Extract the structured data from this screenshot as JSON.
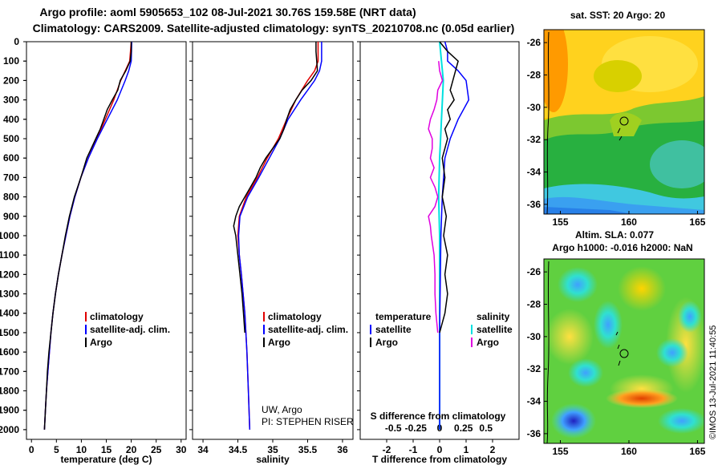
{
  "header": {
    "title_line1": "Argo profile: aoml 5905653_102 08-Jul-2021 30.76S 159.58E (NRT data)",
    "title_line2": "Climatology: CARS2009. Satellite-adjusted climatology: synTS_20210708.nc (0.05d earlier)"
  },
  "colors": {
    "argo": "#000000",
    "climatology": "#e00000",
    "satellite_adj": "#0000ff",
    "satellite": "#00e0e0",
    "salinity_argo": "#e000e0"
  },
  "chart_data": [
    {
      "type": "line",
      "id": "temperature",
      "xlabel": "temperature (deg C)",
      "ylabel": "",
      "xlim": [
        -1,
        31
      ],
      "ylim": [
        2050,
        0
      ],
      "xticks": [
        "0",
        "5",
        "10",
        "15",
        "20",
        "25",
        "30"
      ],
      "yticks": [
        "0",
        "100",
        "200",
        "300",
        "400",
        "500",
        "600",
        "700",
        "800",
        "900",
        "1000",
        "1100",
        "1200",
        "1300",
        "1400",
        "1500",
        "1600",
        "1700",
        "1800",
        "1900",
        "2000"
      ],
      "legend": [
        "climatology",
        "satellite-adj. clim.",
        "Argo"
      ],
      "series": [
        {
          "name": "climatology",
          "depth": [
            0,
            100,
            150,
            200,
            300,
            400,
            500,
            600,
            700,
            800,
            900,
            1000,
            1100,
            1200,
            1300,
            1400,
            1500,
            1600,
            1700,
            1800,
            1900,
            2000
          ],
          "values": [
            20.0,
            19.7,
            18.8,
            17.9,
            16.5,
            14.8,
            13.1,
            11.4,
            9.9,
            8.7,
            7.7,
            6.9,
            6.1,
            5.4,
            4.8,
            4.3,
            3.9,
            3.6,
            3.3,
            3.0,
            2.8,
            2.6
          ]
        },
        {
          "name": "satellite-adj. clim.",
          "depth": [
            0,
            100,
            150,
            200,
            300,
            400,
            500,
            600,
            700,
            800,
            900,
            1000,
            1100,
            1200,
            1300,
            1400,
            1500,
            1600,
            1700,
            1800,
            1900,
            2000
          ],
          "values": [
            20.1,
            20.0,
            19.5,
            18.8,
            17.2,
            15.2,
            13.2,
            11.4,
            9.9,
            8.7,
            7.7,
            6.9,
            6.1,
            5.4,
            4.8,
            4.3,
            3.9,
            3.6,
            3.3,
            3.0,
            2.8,
            2.6
          ]
        },
        {
          "name": "Argo",
          "depth": [
            0,
            50,
            100,
            150,
            200,
            250,
            300,
            350,
            400,
            450,
            500,
            550,
            600,
            650,
            700,
            800,
            900,
            1000,
            1100,
            1200,
            1300,
            1400,
            1500,
            1600,
            1700,
            1800,
            1900,
            2000
          ],
          "values": [
            20.0,
            20.0,
            19.8,
            18.9,
            17.8,
            17.3,
            16.2,
            15.2,
            14.5,
            13.8,
            12.9,
            12.0,
            11.1,
            10.5,
            9.9,
            8.6,
            7.6,
            6.8,
            6.1,
            5.4,
            4.8,
            4.3,
            3.9,
            3.5,
            3.2,
            3.0,
            2.8,
            2.6
          ]
        }
      ]
    },
    {
      "type": "line",
      "id": "salinity",
      "xlabel": "salinity",
      "xlim": [
        33.85,
        36.15
      ],
      "ylim": [
        2050,
        0
      ],
      "xticks": [
        "34",
        "34.5",
        "35",
        "35.5",
        "36"
      ],
      "legend": [
        "climatology",
        "satellite-adj. clim.",
        "Argo"
      ],
      "annotation": [
        "UW, Argo",
        "PI: STEPHEN RISER"
      ],
      "series": [
        {
          "name": "climatology",
          "depth": [
            0,
            100,
            150,
            200,
            300,
            400,
            500,
            600,
            700,
            800,
            900,
            1000,
            1100,
            1200,
            1400,
            1600,
            1800,
            2000
          ],
          "values": [
            35.65,
            35.65,
            35.6,
            35.5,
            35.33,
            35.2,
            35.08,
            34.92,
            34.78,
            34.62,
            34.52,
            34.5,
            34.52,
            34.55,
            34.6,
            34.63,
            34.65,
            34.67
          ]
        },
        {
          "name": "satellite-adj. clim.",
          "depth": [
            0,
            100,
            150,
            200,
            300,
            400,
            500,
            600,
            700,
            800,
            900,
            1000,
            1100,
            1200,
            1400,
            1600,
            1800,
            2000
          ],
          "values": [
            35.7,
            35.7,
            35.67,
            35.6,
            35.4,
            35.22,
            35.1,
            34.95,
            34.8,
            34.64,
            34.53,
            34.51,
            34.52,
            34.55,
            34.6,
            34.63,
            34.65,
            34.67
          ]
        },
        {
          "name": "Argo",
          "depth": [
            0,
            50,
            100,
            150,
            200,
            250,
            300,
            350,
            400,
            450,
            500,
            550,
            600,
            650,
            700,
            750,
            800,
            850,
            900,
            950,
            1000,
            1100,
            1200,
            1300,
            1400,
            1500
          ],
          "values": [
            35.62,
            35.62,
            35.63,
            35.64,
            35.55,
            35.42,
            35.33,
            35.25,
            35.2,
            35.16,
            35.1,
            35.0,
            34.9,
            34.82,
            34.76,
            34.68,
            34.6,
            34.52,
            34.47,
            34.44,
            34.47,
            34.5,
            34.53,
            34.56,
            34.58,
            34.6
          ]
        }
      ]
    },
    {
      "type": "line",
      "id": "difference",
      "xlabel": "T difference from climatology",
      "xlabel_top": "S difference from climatology",
      "xlim": [
        -3,
        3
      ],
      "ylim": [
        2050,
        0
      ],
      "xticks": [
        "-2",
        "-1",
        "0",
        "1",
        "2"
      ],
      "xticks_s": [
        "-0.5",
        "-0.25",
        "0",
        "0.25",
        "0.5"
      ],
      "legend_left_title": "temperature",
      "legend_right_title": "salinity",
      "legend_left": [
        "satellite",
        "Argo"
      ],
      "legend_right": [
        "satellite",
        "Argo"
      ],
      "series": [
        {
          "name": "T satellite",
          "depth": [
            0,
            50,
            100,
            150,
            200,
            300,
            400,
            500,
            600,
            800,
            1000,
            1500,
            2000
          ],
          "values": [
            0.2,
            0.3,
            0.3,
            0.7,
            1.0,
            1.1,
            0.7,
            0.4,
            0.2,
            0.1,
            0.05,
            0.0,
            0.0
          ]
        },
        {
          "name": "T Argo",
          "depth": [
            0,
            50,
            100,
            150,
            200,
            250,
            300,
            350,
            400,
            450,
            500,
            600,
            700,
            800,
            900,
            1000,
            1100,
            1200,
            1300,
            1400,
            1500
          ],
          "values": [
            0.0,
            0.3,
            0.7,
            0.6,
            0.5,
            0.4,
            0.55,
            0.3,
            0.4,
            0.2,
            0.3,
            0.1,
            0.2,
            0.1,
            0.25,
            0.15,
            0.3,
            0.2,
            0.3,
            0.2,
            0.0
          ]
        },
        {
          "name": "S satellite",
          "depth": [
            0,
            100,
            200,
            300,
            400,
            500,
            600,
            800,
            1000,
            1500,
            2000
          ],
          "values": [
            0.0,
            0.02,
            0.04,
            0.03,
            0.02,
            0.01,
            0.0,
            -0.01,
            0.0,
            0.0,
            0.0
          ]
        },
        {
          "name": "S Argo",
          "depth": [
            100,
            150,
            200,
            250,
            300,
            350,
            400,
            450,
            500,
            550,
            600,
            650,
            700,
            750,
            800,
            850,
            900,
            950,
            1000,
            1100,
            1200,
            1300,
            1400,
            1500
          ],
          "values": [
            -0.01,
            0.0,
            0.03,
            -0.02,
            -0.03,
            -0.06,
            -0.1,
            -0.12,
            -0.08,
            -0.08,
            -0.1,
            -0.06,
            -0.1,
            -0.05,
            -0.02,
            -0.05,
            -0.12,
            -0.1,
            -0.09,
            -0.06,
            -0.05,
            -0.05,
            -0.04,
            -0.02
          ]
        }
      ]
    },
    {
      "type": "heatmap",
      "id": "sst_map",
      "title": "sat. SST: 20 Argo: 20",
      "xlim": [
        153.8,
        165.5
      ],
      "ylim": [
        -36.6,
        -25.2
      ],
      "xticks": [
        "155",
        "160",
        "165"
      ],
      "yticks": [
        "-26",
        "-28",
        "-30",
        "-32",
        "-34",
        "-36"
      ],
      "marker": [
        159.58,
        -30.76
      ]
    },
    {
      "type": "heatmap",
      "id": "sla_map",
      "title": "Altim. SLA: 0.077",
      "subtitle": "Argo h1000: -0.016 h2000: NaN",
      "xlim": [
        153.8,
        165.5
      ],
      "ylim": [
        -36.6,
        -25.2
      ],
      "xticks": [
        "155",
        "160",
        "165"
      ],
      "yticks": [
        "-26",
        "-28",
        "-30",
        "-32",
        "-34",
        "-36"
      ],
      "marker": [
        159.58,
        -30.76
      ],
      "credit": "©IMOS 13-Jul-2021 11:40:55"
    }
  ]
}
